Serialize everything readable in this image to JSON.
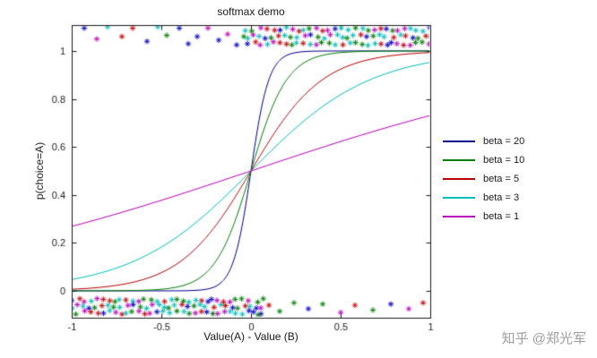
{
  "watermark": {
    "text": "知乎 @郑光军",
    "color": "#9e9e9e"
  },
  "chart_data": {
    "type": "line",
    "title": "softmax demo",
    "xlabel": "Value(A) - Value (B)",
    "ylabel": "p(choice=A)",
    "xlim": [
      -1,
      1
    ],
    "ylim": [
      -0.112,
      1.108
    ],
    "xticks": [
      -1,
      -0.5,
      0,
      0.5,
      1
    ],
    "xtick_labels": [
      "-1",
      "-0.5",
      "0",
      "0.5",
      "1"
    ],
    "yticks": [
      0,
      0.2,
      0.4,
      0.6,
      0.8,
      1
    ],
    "ytick_labels": [
      "0",
      "0.2",
      "0.4",
      "0.6",
      "0.8",
      "1"
    ],
    "grid": false,
    "legend_position": "right-outside",
    "formula": "p(choice=A) = 1 / (1 + exp(-beta * (Value(A) - Value(B))))",
    "series": [
      {
        "name": "beta = 20",
        "beta": 20,
        "color": "#00008F"
      },
      {
        "name": "beta = 10",
        "beta": 10,
        "color": "#007F00"
      },
      {
        "name": "beta = 5",
        "beta": 5,
        "color": "#BF0000"
      },
      {
        "name": "beta = 3",
        "beta": 3,
        "color": "#00BFBF"
      },
      {
        "name": "beta = 1",
        "beta": 1,
        "color": "#BF00BF"
      }
    ],
    "scatter": {
      "marker": "*",
      "marker_size": 3.2,
      "colors": [
        "#0000CC",
        "#007F00",
        "#CC0000",
        "#00BFBF",
        "#BF00BF"
      ],
      "top_band": {
        "x_start": -0.02,
        "x_end": 1.0,
        "count": 30,
        "rows": [
          1.03,
          1.06,
          1.09
        ]
      },
      "bottom_band": {
        "x_start": -1.0,
        "x_end": 0.06,
        "count": 32,
        "rows": [
          -0.04,
          -0.065,
          -0.09
        ]
      },
      "outliers_top": [
        [
          -0.93,
          1.095
        ],
        [
          -0.86,
          1.05
        ],
        [
          -0.8,
          1.1
        ],
        [
          -0.72,
          1.06
        ],
        [
          -0.66,
          1.095
        ],
        [
          -0.58,
          1.04
        ],
        [
          -0.52,
          1.1
        ],
        [
          -0.47,
          1.065
        ],
        [
          -0.4,
          1.095
        ],
        [
          -0.35,
          1.03
        ],
        [
          -0.3,
          1.06
        ],
        [
          -0.24,
          1.095
        ],
        [
          -0.18,
          1.045
        ],
        [
          -0.13,
          1.07
        ],
        [
          -0.08,
          1.025
        ],
        [
          -0.04,
          1.06
        ]
      ],
      "outliers_bottom": [
        [
          0.04,
          -0.1
        ],
        [
          0.1,
          -0.06
        ],
        [
          0.16,
          -0.085
        ],
        [
          0.24,
          -0.05
        ],
        [
          0.32,
          -0.075
        ],
        [
          0.4,
          -0.055
        ],
        [
          0.5,
          -0.09
        ],
        [
          0.58,
          -0.06
        ],
        [
          0.68,
          -0.08
        ],
        [
          0.78,
          -0.055
        ],
        [
          0.88,
          -0.075
        ],
        [
          0.96,
          -0.05
        ]
      ]
    }
  }
}
